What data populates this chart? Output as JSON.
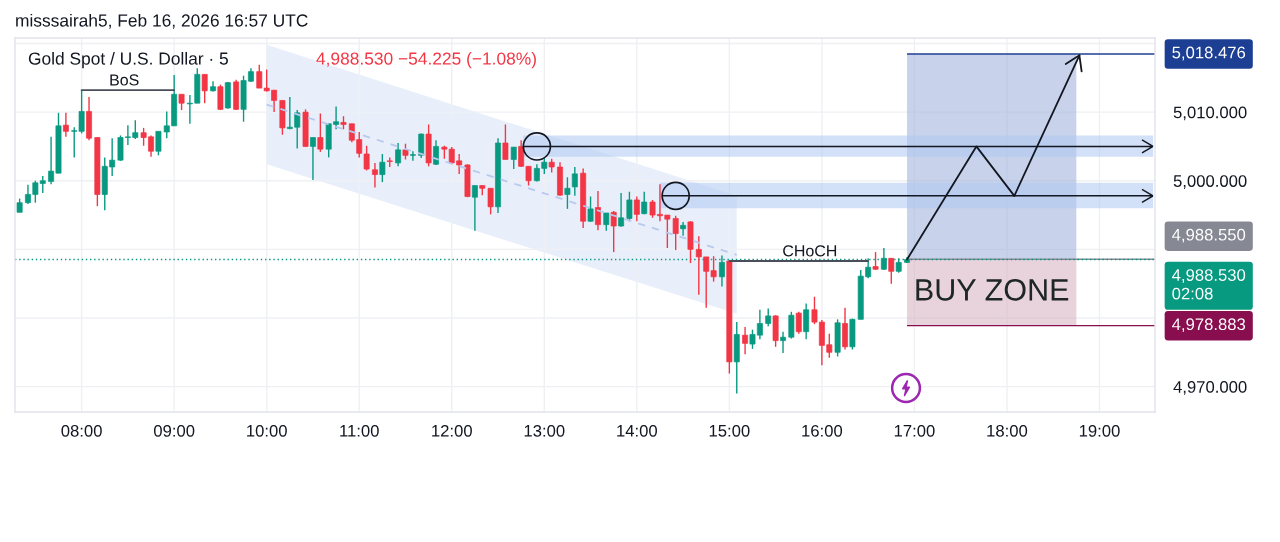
{
  "chart_data": {
    "type": "candlestick",
    "title": "Gold Spot / U.S. Dollar · 5",
    "subtitle": "4,988.530 −54.225 (−1.08%)",
    "annotations": [
      "misssairah5, Feb 16, 2026 16:57 UTC",
      {
        "text": "BoS",
        "x": 8.46,
        "y": 5013.2
      },
      {
        "text": "CHoCH",
        "x": 15.87,
        "y": 4988.3
      },
      "BUY ZONE"
    ],
    "xlim": [
      7.28,
      19.6
    ],
    "ylim": [
      4966.3,
      5020.8
    ],
    "xticks": [
      {
        "value": 8,
        "label": "08:00"
      },
      {
        "value": 9,
        "label": "09:00"
      },
      {
        "value": 10,
        "label": "10:00"
      },
      {
        "value": 11,
        "label": "11:00"
      },
      {
        "value": 12,
        "label": "12:00"
      },
      {
        "value": 13,
        "label": "13:00"
      },
      {
        "value": 14,
        "label": "14:00"
      },
      {
        "value": 15,
        "label": "15:00"
      },
      {
        "value": 16,
        "label": "16:00"
      },
      {
        "value": 17,
        "label": "17:00"
      },
      {
        "value": 18,
        "label": "18:00"
      },
      {
        "value": 19,
        "label": "19:00"
      }
    ],
    "yticks": [
      {
        "value": 4970,
        "label": "4,970.000"
      },
      {
        "value": 4980,
        "label": null
      },
      {
        "value": 4990,
        "label": null
      },
      {
        "value": 5000,
        "label": "5,000.000"
      },
      {
        "value": 5010,
        "label": "5,010.000"
      },
      {
        "value": 5020,
        "label": null
      }
    ],
    "grid": true,
    "ref_lines": [
      {
        "axis": "y",
        "value": 5018.476,
        "label": "5,018.476",
        "color": "#1c3f94"
      },
      {
        "axis": "y",
        "value": 4988.55,
        "label": "4,988.550",
        "color": "#868993"
      },
      {
        "axis": "y",
        "value": 4988.53,
        "label": "4,988.530\n02:08",
        "color": "#089981",
        "line_style": "dotted"
      },
      {
        "axis": "y",
        "value": 4978.883,
        "label": "4,978.883",
        "color": "#880e4f"
      }
    ],
    "series": [
      {
        "type": "line",
        "x": [
          10.0,
          15.08
        ],
        "values": [
          5011.1,
          4989.2
        ],
        "lower": [
          5002.4,
          4980.6
        ],
        "upper": [
          5019.8,
          4997.8
        ],
        "color": "#b7c9ee",
        "line_style": "dashed"
      },
      {
        "type": "line",
        "x": [
          16.92,
          18.75
        ],
        "values": [
          null,
          null
        ],
        "lower": [
          4988.55,
          4988.55
        ],
        "upper": [
          5018.476,
          5018.476
        ],
        "color": "#c8d3eb"
      },
      {
        "type": "line",
        "x": [
          16.92,
          18.75
        ],
        "values": [
          null,
          null
        ],
        "lower": [
          4978.883,
          4978.883
        ],
        "upper": [
          4988.55,
          4988.55
        ],
        "color": "#e8d3dd"
      },
      {
        "type": "line",
        "x": [
          12.77,
          19.58
        ],
        "values": [
          null,
          null
        ],
        "lower": [
          5003.5,
          5003.5
        ],
        "upper": [
          5006.6,
          5006.6
        ],
        "color": "#d3e1f8"
      },
      {
        "type": "line",
        "x": [
          14.25,
          19.58
        ],
        "values": [
          null,
          null
        ],
        "lower": [
          4996.0,
          4996.0
        ],
        "upper": [
          4999.7,
          4999.7
        ],
        "color": "#d3e1f8"
      },
      {
        "x": [
          7.33,
          7.42,
          7.5,
          7.58,
          7.67,
          7.75,
          7.83,
          7.92,
          8.0,
          8.08,
          8.17,
          8.25,
          8.33,
          8.42,
          8.5,
          8.58,
          8.67,
          8.75,
          8.83,
          8.92,
          9.0,
          9.08,
          9.17,
          9.25,
          9.33,
          9.42,
          9.5,
          9.58,
          9.67,
          9.75,
          9.83,
          9.92,
          10.0,
          10.08,
          10.17,
          10.25,
          10.33,
          10.42,
          10.5,
          10.58,
          10.67,
          10.75,
          10.83,
          10.92,
          11.0,
          11.08,
          11.17,
          11.25,
          11.33,
          11.42,
          11.5,
          11.58,
          11.67,
          11.75,
          11.83,
          11.92,
          12.0,
          12.08,
          12.17,
          12.25,
          12.33,
          12.42,
          12.5,
          12.58,
          12.67,
          12.75,
          12.83,
          12.92,
          13.0,
          13.08,
          13.17,
          13.25,
          13.33,
          13.42,
          13.5,
          13.58,
          13.67,
          13.75,
          13.83,
          13.92,
          14.0,
          14.08,
          14.17,
          14.25,
          14.33,
          14.42,
          14.5,
          14.58,
          14.67,
          14.75,
          14.83,
          14.92,
          15.0,
          15.08,
          15.17,
          15.25,
          15.33,
          15.42,
          15.5,
          15.58,
          15.67,
          15.75,
          15.83,
          15.92,
          16.0,
          16.08,
          16.17,
          16.25,
          16.33,
          16.42,
          16.5,
          16.58,
          16.67,
          16.75,
          16.83,
          16.92
        ],
        "ohlc": [
          [
            4995.4,
            4997.4,
            4995.4,
            4996.8
          ],
          [
            4996.8,
            4999.4,
            4996.6,
            4998.0
          ],
          [
            4998.0,
            5000.0,
            4996.8,
            4999.7
          ],
          [
            4999.6,
            5000.7,
            4998.2,
            5000.0
          ],
          [
            4999.9,
            5006.4,
            4999.5,
            5001.4
          ],
          [
            5001.1,
            5009.9,
            5001.1,
            5008.0
          ],
          [
            5008.1,
            5009.9,
            5006.4,
            5007.2
          ],
          [
            5007.2,
            5007.8,
            5003.4,
            5007.3
          ],
          [
            5007.2,
            5013.2,
            5006.9,
            5010.1
          ],
          [
            5010.1,
            5012.2,
            5005.9,
            5006.2
          ],
          [
            5006.3,
            5006.3,
            4996.3,
            4998.0
          ],
          [
            4998.0,
            5003.4,
            4995.7,
            5002.1
          ],
          [
            5002.0,
            5006.2,
            5000.7,
            5003.0
          ],
          [
            5003.0,
            5006.6,
            5002.9,
            5006.3
          ],
          [
            5006.3,
            5008.1,
            5005.2,
            5006.4
          ],
          [
            5006.3,
            5008.8,
            5006.1,
            5007.0
          ],
          [
            5007.0,
            5007.7,
            5005.1,
            5006.3
          ],
          [
            5006.4,
            5006.6,
            5003.5,
            5004.3
          ],
          [
            5004.3,
            5007.2,
            5003.7,
            5007.2
          ],
          [
            5007.1,
            5010.1,
            5006.2,
            5008.0
          ],
          [
            5008.0,
            5015.4,
            5008.0,
            5012.6
          ],
          [
            5012.6,
            5012.6,
            5010.3,
            5011.3
          ],
          [
            5011.2,
            5012.5,
            5008.3,
            5011.3
          ],
          [
            5011.3,
            5016.4,
            5011.3,
            5015.5
          ],
          [
            5015.5,
            5015.5,
            5011.3,
            5013.1
          ],
          [
            5013.1,
            5014.5,
            5013.0,
            5013.7
          ],
          [
            5013.7,
            5014.0,
            5010.3,
            5010.4
          ],
          [
            5010.6,
            5014.4,
            5010.5,
            5014.3
          ],
          [
            5014.4,
            5014.7,
            5010.3,
            5010.4
          ],
          [
            5010.4,
            5015.3,
            5008.6,
            5014.6
          ],
          [
            5014.5,
            5016.4,
            5014.4,
            5015.9
          ],
          [
            5015.9,
            5016.9,
            5013.5,
            5013.5
          ],
          [
            5013.5,
            5016.2,
            5013.0,
            5013.1
          ],
          [
            5013.2,
            5013.2,
            5010.0,
            5011.7
          ],
          [
            5011.7,
            5011.7,
            5006.7,
            5007.7
          ],
          [
            5007.6,
            5012.2,
            5007.5,
            5007.8
          ],
          [
            5007.8,
            5010.3,
            5004.7,
            5009.9
          ],
          [
            5010.0,
            5010.4,
            5004.9,
            5005.0
          ],
          [
            5005.0,
            5006.3,
            5000.1,
            5006.3
          ],
          [
            5006.3,
            5009.8,
            5004.2,
            5004.6
          ],
          [
            5004.6,
            5008.3,
            5003.4,
            5008.3
          ],
          [
            5008.2,
            5010.8,
            5007.5,
            5008.6
          ],
          [
            5008.5,
            5009.4,
            5007.5,
            5008.2
          ],
          [
            5008.3,
            5008.3,
            5005.6,
            5005.9
          ],
          [
            5006.0,
            5007.1,
            5003.4,
            5004.0
          ],
          [
            5003.9,
            5005.1,
            5001.5,
            5001.7
          ],
          [
            5001.6,
            5002.6,
            4999.0,
            5000.9
          ],
          [
            5000.9,
            5003.9,
            4999.8,
            5002.7
          ],
          [
            5002.9,
            5003.4,
            5002.0,
            5002.8
          ],
          [
            5002.6,
            5005.5,
            5002.1,
            5004.5
          ],
          [
            5004.5,
            5005.4,
            5003.1,
            5003.7
          ],
          [
            5003.7,
            5004.3,
            5002.9,
            5003.8
          ],
          [
            5003.7,
            5006.9,
            5003.3,
            5006.8
          ],
          [
            5006.8,
            5008.2,
            5002.1,
            5002.6
          ],
          [
            5002.4,
            5005.9,
            5002.3,
            5005.0
          ],
          [
            5004.9,
            5005.1,
            5003.2,
            5004.6
          ],
          [
            5004.6,
            5004.9,
            5002.4,
            5002.6
          ],
          [
            5002.9,
            5003.9,
            5001.0,
            5002.3
          ],
          [
            5002.3,
            5002.4,
            4997.6,
            4997.7
          ],
          [
            4997.6,
            4999.3,
            4992.7,
            4999.3
          ],
          [
            4999.3,
            4999.3,
            4997.9,
            4998.9
          ],
          [
            4998.9,
            4998.9,
            4995.1,
            4996.2
          ],
          [
            4996.2,
            5006.2,
            4995.3,
            5005.5
          ],
          [
            5005.5,
            5008.2,
            5003.1,
            5003.1
          ],
          [
            5003.1,
            5004.9,
            5001.7,
            5004.9
          ],
          [
            5005.0,
            5005.9,
            5002.0,
            5002.1
          ],
          [
            5002.1,
            5002.1,
            4999.3,
            5000.0
          ],
          [
            5000.0,
            5002.4,
            4999.9,
            5001.8
          ],
          [
            5001.8,
            5003.4,
            5001.0,
            5002.7
          ],
          [
            5002.7,
            5003.2,
            5001.2,
            5002.0
          ],
          [
            5002.0,
            5002.7,
            4997.8,
            4997.9
          ],
          [
            4998.0,
            5000.5,
            4995.9,
            4998.9
          ],
          [
            4999.1,
            5002.0,
            4997.8,
            5001.0
          ],
          [
            5001.1,
            5001.8,
            4993.1,
            4994.1
          ],
          [
            4994.1,
            4997.7,
            4994.0,
            4995.9
          ],
          [
            4996.1,
            4998.5,
            4992.8,
            4993.6
          ],
          [
            4993.6,
            4995.3,
            4992.7,
            4995.3
          ],
          [
            4995.4,
            4995.6,
            4989.6,
            4993.4
          ],
          [
            4993.4,
            4998.2,
            4993.3,
            4994.6
          ],
          [
            4994.5,
            4998.4,
            4994.1,
            4997.2
          ],
          [
            4997.2,
            4997.7,
            4994.1,
            4995.1
          ],
          [
            4995.2,
            4998.4,
            4995.1,
            4996.9
          ],
          [
            4996.9,
            4997.2,
            4994.6,
            4995.0
          ],
          [
            4995.1,
            4999.5,
            4994.1,
            4994.9
          ],
          [
            4995.0,
            4995.0,
            4990.2,
            4994.4
          ],
          [
            4994.5,
            4994.9,
            4989.9,
            4992.3
          ],
          [
            4993.0,
            4994.0,
            4992.0,
            4993.5
          ],
          [
            4994.0,
            4994.1,
            4988.0,
            4990.0
          ],
          [
            4990.0,
            4991.9,
            4983.4,
            4988.9
          ],
          [
            4988.9,
            4988.9,
            4981.5,
            4986.8
          ],
          [
            4986.9,
            4989.0,
            4985.3,
            4986.0
          ],
          [
            4986.0,
            4989.1,
            4984.6,
            4988.1
          ],
          [
            4988.3,
            4988.3,
            4971.9,
            4973.6
          ],
          [
            4973.6,
            4979.4,
            4969.0,
            4977.6
          ],
          [
            4977.5,
            4978.7,
            4974.7,
            4976.3
          ],
          [
            4976.2,
            4978.3,
            4975.5,
            4977.6
          ],
          [
            4977.5,
            4981.2,
            4976.9,
            4979.2
          ],
          [
            4979.2,
            4981.4,
            4978.8,
            4980.3
          ],
          [
            4980.3,
            4980.4,
            4975.8,
            4976.7
          ],
          [
            4976.7,
            4978.0,
            4974.9,
            4977.2
          ],
          [
            4977.2,
            4980.9,
            4977.0,
            4980.4
          ],
          [
            4980.7,
            4980.9,
            4977.7,
            4978.0
          ],
          [
            4978.0,
            4982.1,
            4976.9,
            4981.2
          ],
          [
            4981.2,
            4983.1,
            4979.1,
            4979.4
          ],
          [
            4979.4,
            4979.7,
            4973.1,
            4976.0
          ],
          [
            4976.1,
            4977.7,
            4974.2,
            4975.0
          ],
          [
            4975.0,
            4979.8,
            4974.4,
            4979.3
          ],
          [
            4979.2,
            4981.5,
            4975.4,
            4975.8
          ],
          [
            4975.8,
            4979.9,
            4975.4,
            4979.8
          ],
          [
            4979.8,
            4987.0,
            4979.8,
            4986.1
          ],
          [
            4986.0,
            4988.7,
            4985.8,
            4987.4
          ],
          [
            4987.5,
            4989.6,
            4987.0,
            4987.1
          ],
          [
            4987.1,
            4990.2,
            4987.0,
            4988.7
          ],
          [
            4988.7,
            4988.7,
            4985.0,
            4986.8
          ],
          [
            4986.8,
            4988.7,
            4986.6,
            4988.1
          ],
          [
            4988.1,
            4988.9,
            4988.0,
            4988.53
          ]
        ],
        "colors": [
          "#089981",
          "#089981",
          "#089981",
          "#089981",
          "#089981",
          "#089981",
          "#f23645",
          "#089981",
          "#089981",
          "#f23645",
          "#f23645",
          "#089981",
          "#089981",
          "#089981",
          "#089981",
          "#089981",
          "#f23645",
          "#f23645",
          "#089981",
          "#089981",
          "#089981",
          "#f23645",
          "#089981",
          "#089981",
          "#f23645",
          "#089981",
          "#f23645",
          "#089981",
          "#f23645",
          "#089981",
          "#089981",
          "#f23645",
          "#f23645",
          "#f23645",
          "#f23645",
          "#089981",
          "#089981",
          "#f23645",
          "#089981",
          "#f23645",
          "#089981",
          "#089981",
          "#f23645",
          "#f23645",
          "#f23645",
          "#f23645",
          "#f23645",
          "#089981",
          "#f23645",
          "#089981",
          "#f23645",
          "#089981",
          "#089981",
          "#f23645",
          "#089981",
          "#f23645",
          "#f23645",
          "#f23645",
          "#f23645",
          "#089981",
          "#f23645",
          "#f23645",
          "#089981",
          "#f23645",
          "#089981",
          "#f23645",
          "#f23645",
          "#089981",
          "#089981",
          "#f23645",
          "#f23645",
          "#089981",
          "#089981",
          "#f23645",
          "#089981",
          "#f23645",
          "#089981",
          "#f23645",
          "#089981",
          "#089981",
          "#f23645",
          "#089981",
          "#f23645",
          "#f23645",
          "#f23645",
          "#f23645",
          "#089981",
          "#f23645",
          "#f23645",
          "#f23645",
          "#f23645",
          "#089981",
          "#f23645",
          "#089981",
          "#f23645",
          "#089981",
          "#089981",
          "#089981",
          "#f23645",
          "#089981",
          "#089981",
          "#f23645",
          "#089981",
          "#f23645",
          "#f23645",
          "#f23645",
          "#089981",
          "#f23645",
          "#089981",
          "#089981",
          "#089981",
          "#f23645",
          "#089981",
          "#f23645",
          "#089981",
          "#089981"
        ]
      },
      {
        "type": "line",
        "x": [
          8.0,
          9.0
        ],
        "values": [
          5013.2,
          5013.2
        ],
        "color": "#4a4e5a"
      },
      {
        "type": "line",
        "x": [
          15.0,
          16.5
        ],
        "values": [
          4988.3,
          4988.3
        ],
        "color": "#4a4e5a"
      },
      {
        "type": "scatter",
        "x": [
          12.92,
          14.42
        ],
        "values": [
          5005.0,
          4997.8
        ],
        "color": "#131722",
        "marker": "circle"
      }
    ]
  }
}
